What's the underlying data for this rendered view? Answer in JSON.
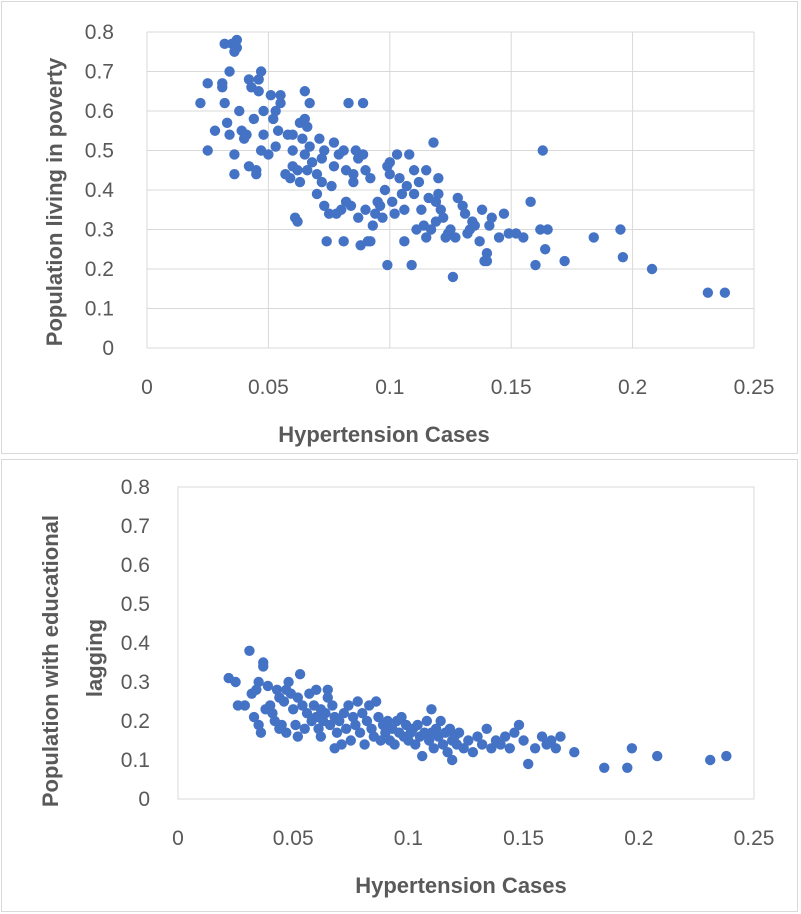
{
  "chart_data": [
    {
      "type": "scatter",
      "title": "",
      "xlabel": "Hypertension Cases",
      "ylabel": "Population living in poverty",
      "xlim": [
        0,
        0.25
      ],
      "ylim": [
        0,
        0.8
      ],
      "xticks": [
        "0",
        "0.05",
        "0.1",
        "0.15",
        "0.2",
        "0.25"
      ],
      "yticks": [
        "0",
        "0.1",
        "0.2",
        "0.3",
        "0.4",
        "0.5",
        "0.6",
        "0.7",
        "0.8"
      ],
      "grid": true,
      "marker_color": "#4472c4",
      "points": [
        [
          0.022,
          0.62
        ],
        [
          0.025,
          0.67
        ],
        [
          0.025,
          0.5
        ],
        [
          0.028,
          0.55
        ],
        [
          0.031,
          0.66
        ],
        [
          0.031,
          0.67
        ],
        [
          0.032,
          0.62
        ],
        [
          0.032,
          0.77
        ],
        [
          0.033,
          0.57
        ],
        [
          0.034,
          0.54
        ],
        [
          0.034,
          0.7
        ],
        [
          0.035,
          0.77
        ],
        [
          0.036,
          0.75
        ],
        [
          0.036,
          0.44
        ],
        [
          0.036,
          0.49
        ],
        [
          0.037,
          0.78
        ],
        [
          0.037,
          0.76
        ],
        [
          0.038,
          0.6
        ],
        [
          0.039,
          0.55
        ],
        [
          0.04,
          0.53
        ],
        [
          0.041,
          0.54
        ],
        [
          0.042,
          0.46
        ],
        [
          0.042,
          0.68
        ],
        [
          0.043,
          0.66
        ],
        [
          0.044,
          0.58
        ],
        [
          0.045,
          0.45
        ],
        [
          0.045,
          0.44
        ],
        [
          0.046,
          0.65
        ],
        [
          0.046,
          0.68
        ],
        [
          0.047,
          0.7
        ],
        [
          0.047,
          0.5
        ],
        [
          0.048,
          0.54
        ],
        [
          0.048,
          0.6
        ],
        [
          0.05,
          0.49
        ],
        [
          0.051,
          0.64
        ],
        [
          0.052,
          0.58
        ],
        [
          0.053,
          0.6
        ],
        [
          0.053,
          0.51
        ],
        [
          0.054,
          0.55
        ],
        [
          0.055,
          0.62
        ],
        [
          0.055,
          0.64
        ],
        [
          0.057,
          0.44
        ],
        [
          0.058,
          0.54
        ],
        [
          0.059,
          0.43
        ],
        [
          0.06,
          0.46
        ],
        [
          0.06,
          0.5
        ],
        [
          0.06,
          0.54
        ],
        [
          0.061,
          0.33
        ],
        [
          0.062,
          0.32
        ],
        [
          0.062,
          0.45
        ],
        [
          0.063,
          0.42
        ],
        [
          0.063,
          0.57
        ],
        [
          0.064,
          0.53
        ],
        [
          0.065,
          0.65
        ],
        [
          0.065,
          0.58
        ],
        [
          0.065,
          0.49
        ],
        [
          0.066,
          0.45
        ],
        [
          0.066,
          0.56
        ],
        [
          0.067,
          0.62
        ],
        [
          0.067,
          0.51
        ],
        [
          0.068,
          0.47
        ],
        [
          0.07,
          0.44
        ],
        [
          0.07,
          0.39
        ],
        [
          0.071,
          0.53
        ],
        [
          0.072,
          0.42
        ],
        [
          0.072,
          0.48
        ],
        [
          0.073,
          0.36
        ],
        [
          0.073,
          0.5
        ],
        [
          0.074,
          0.27
        ],
        [
          0.075,
          0.34
        ],
        [
          0.076,
          0.41
        ],
        [
          0.077,
          0.46
        ],
        [
          0.077,
          0.52
        ],
        [
          0.078,
          0.34
        ],
        [
          0.079,
          0.49
        ],
        [
          0.08,
          0.35
        ],
        [
          0.081,
          0.5
        ],
        [
          0.081,
          0.27
        ],
        [
          0.082,
          0.37
        ],
        [
          0.082,
          0.45
        ],
        [
          0.083,
          0.62
        ],
        [
          0.084,
          0.36
        ],
        [
          0.085,
          0.44
        ],
        [
          0.085,
          0.42
        ],
        [
          0.086,
          0.5
        ],
        [
          0.087,
          0.33
        ],
        [
          0.087,
          0.48
        ],
        [
          0.088,
          0.26
        ],
        [
          0.089,
          0.49
        ],
        [
          0.089,
          0.62
        ],
        [
          0.09,
          0.45
        ],
        [
          0.09,
          0.35
        ],
        [
          0.091,
          0.27
        ],
        [
          0.092,
          0.43
        ],
        [
          0.092,
          0.27
        ],
        [
          0.093,
          0.31
        ],
        [
          0.094,
          0.34
        ],
        [
          0.095,
          0.37
        ],
        [
          0.096,
          0.36
        ],
        [
          0.097,
          0.33
        ],
        [
          0.098,
          0.4
        ],
        [
          0.099,
          0.46
        ],
        [
          0.099,
          0.21
        ],
        [
          0.1,
          0.47
        ],
        [
          0.1,
          0.44
        ],
        [
          0.101,
          0.37
        ],
        [
          0.102,
          0.34
        ],
        [
          0.103,
          0.49
        ],
        [
          0.104,
          0.43
        ],
        [
          0.105,
          0.39
        ],
        [
          0.106,
          0.35
        ],
        [
          0.106,
          0.27
        ],
        [
          0.107,
          0.41
        ],
        [
          0.108,
          0.49
        ],
        [
          0.109,
          0.21
        ],
        [
          0.11,
          0.45
        ],
        [
          0.11,
          0.39
        ],
        [
          0.111,
          0.3
        ],
        [
          0.112,
          0.42
        ],
        [
          0.113,
          0.35
        ],
        [
          0.114,
          0.31
        ],
        [
          0.115,
          0.45
        ],
        [
          0.115,
          0.28
        ],
        [
          0.116,
          0.38
        ],
        [
          0.117,
          0.3
        ],
        [
          0.118,
          0.52
        ],
        [
          0.119,
          0.37
        ],
        [
          0.119,
          0.32
        ],
        [
          0.12,
          0.39
        ],
        [
          0.12,
          0.43
        ],
        [
          0.121,
          0.35
        ],
        [
          0.122,
          0.33
        ],
        [
          0.123,
          0.28
        ],
        [
          0.124,
          0.29
        ],
        [
          0.125,
          0.3
        ],
        [
          0.126,
          0.18
        ],
        [
          0.127,
          0.28
        ],
        [
          0.128,
          0.38
        ],
        [
          0.13,
          0.36
        ],
        [
          0.131,
          0.34
        ],
        [
          0.132,
          0.29
        ],
        [
          0.133,
          0.3
        ],
        [
          0.134,
          0.32
        ],
        [
          0.135,
          0.31
        ],
        [
          0.137,
          0.27
        ],
        [
          0.138,
          0.35
        ],
        [
          0.139,
          0.22
        ],
        [
          0.14,
          0.24
        ],
        [
          0.14,
          0.22
        ],
        [
          0.141,
          0.31
        ],
        [
          0.142,
          0.33
        ],
        [
          0.145,
          0.28
        ],
        [
          0.147,
          0.34
        ],
        [
          0.149,
          0.29
        ],
        [
          0.152,
          0.29
        ],
        [
          0.155,
          0.28
        ],
        [
          0.158,
          0.37
        ],
        [
          0.16,
          0.21
        ],
        [
          0.162,
          0.3
        ],
        [
          0.163,
          0.5
        ],
        [
          0.164,
          0.25
        ],
        [
          0.165,
          0.3
        ],
        [
          0.172,
          0.22
        ],
        [
          0.184,
          0.28
        ],
        [
          0.195,
          0.3
        ],
        [
          0.196,
          0.23
        ],
        [
          0.208,
          0.2
        ],
        [
          0.231,
          0.14
        ],
        [
          0.238,
          0.14
        ]
      ]
    },
    {
      "type": "scatter",
      "title": "",
      "xlabel": "Hypertension Cases",
      "ylabel": "Population with educational lagging",
      "ylabel_lines": [
        "Population with educational",
        "lagging"
      ],
      "xlim": [
        0,
        0.25
      ],
      "ylim": [
        0,
        0.8
      ],
      "xticks": [
        "0",
        "0.05",
        "0.1",
        "0.15",
        "0.2",
        "0.25"
      ],
      "yticks": [
        "0",
        "0.1",
        "0.2",
        "0.3",
        "0.4",
        "0.5",
        "0.6",
        "0.7",
        "0.8"
      ],
      "grid": false,
      "marker_color": "#4472c4",
      "points": [
        [
          0.022,
          0.31
        ],
        [
          0.025,
          0.3
        ],
        [
          0.026,
          0.24
        ],
        [
          0.029,
          0.24
        ],
        [
          0.031,
          0.38
        ],
        [
          0.032,
          0.27
        ],
        [
          0.033,
          0.21
        ],
        [
          0.034,
          0.28
        ],
        [
          0.035,
          0.3
        ],
        [
          0.035,
          0.19
        ],
        [
          0.036,
          0.17
        ],
        [
          0.037,
          0.34
        ],
        [
          0.037,
          0.35
        ],
        [
          0.038,
          0.23
        ],
        [
          0.039,
          0.29
        ],
        [
          0.04,
          0.24
        ],
        [
          0.041,
          0.22
        ],
        [
          0.042,
          0.2
        ],
        [
          0.043,
          0.28
        ],
        [
          0.044,
          0.18
        ],
        [
          0.044,
          0.26
        ],
        [
          0.045,
          0.19
        ],
        [
          0.046,
          0.25
        ],
        [
          0.047,
          0.17
        ],
        [
          0.047,
          0.28
        ],
        [
          0.048,
          0.3
        ],
        [
          0.049,
          0.27
        ],
        [
          0.05,
          0.23
        ],
        [
          0.051,
          0.19
        ],
        [
          0.052,
          0.16
        ],
        [
          0.052,
          0.26
        ],
        [
          0.053,
          0.32
        ],
        [
          0.054,
          0.24
        ],
        [
          0.055,
          0.18
        ],
        [
          0.056,
          0.22
        ],
        [
          0.057,
          0.27
        ],
        [
          0.058,
          0.2
        ],
        [
          0.059,
          0.24
        ],
        [
          0.06,
          0.21
        ],
        [
          0.06,
          0.28
        ],
        [
          0.061,
          0.18
        ],
        [
          0.062,
          0.23
        ],
        [
          0.062,
          0.16
        ],
        [
          0.063,
          0.2
        ],
        [
          0.064,
          0.22
        ],
        [
          0.065,
          0.26
        ],
        [
          0.065,
          0.28
        ],
        [
          0.066,
          0.19
        ],
        [
          0.067,
          0.24
        ],
        [
          0.068,
          0.13
        ],
        [
          0.068,
          0.21
        ],
        [
          0.069,
          0.17
        ],
        [
          0.07,
          0.2
        ],
        [
          0.071,
          0.14
        ],
        [
          0.072,
          0.22
        ],
        [
          0.073,
          0.18
        ],
        [
          0.074,
          0.24
        ],
        [
          0.075,
          0.15
        ],
        [
          0.076,
          0.21
        ],
        [
          0.077,
          0.19
        ],
        [
          0.078,
          0.25
        ],
        [
          0.079,
          0.17
        ],
        [
          0.08,
          0.22
        ],
        [
          0.081,
          0.14
        ],
        [
          0.082,
          0.2
        ],
        [
          0.083,
          0.24
        ],
        [
          0.084,
          0.18
        ],
        [
          0.085,
          0.16
        ],
        [
          0.086,
          0.25
        ],
        [
          0.087,
          0.21
        ],
        [
          0.088,
          0.15
        ],
        [
          0.089,
          0.19
        ],
        [
          0.09,
          0.17
        ],
        [
          0.091,
          0.2
        ],
        [
          0.092,
          0.15
        ],
        [
          0.093,
          0.18
        ],
        [
          0.094,
          0.14
        ],
        [
          0.095,
          0.2
        ],
        [
          0.096,
          0.17
        ],
        [
          0.097,
          0.21
        ],
        [
          0.098,
          0.16
        ],
        [
          0.099,
          0.19
        ],
        [
          0.1,
          0.15
        ],
        [
          0.101,
          0.17
        ],
        [
          0.102,
          0.18
        ],
        [
          0.103,
          0.14
        ],
        [
          0.104,
          0.19
        ],
        [
          0.105,
          0.16
        ],
        [
          0.106,
          0.11
        ],
        [
          0.107,
          0.17
        ],
        [
          0.108,
          0.2
        ],
        [
          0.109,
          0.15
        ],
        [
          0.11,
          0.23
        ],
        [
          0.11,
          0.17
        ],
        [
          0.111,
          0.13
        ],
        [
          0.112,
          0.18
        ],
        [
          0.113,
          0.16
        ],
        [
          0.114,
          0.2
        ],
        [
          0.115,
          0.14
        ],
        [
          0.116,
          0.17
        ],
        [
          0.117,
          0.12
        ],
        [
          0.118,
          0.18
        ],
        [
          0.119,
          0.15
        ],
        [
          0.119,
          0.1
        ],
        [
          0.12,
          0.16
        ],
        [
          0.121,
          0.14
        ],
        [
          0.122,
          0.17
        ],
        [
          0.124,
          0.13
        ],
        [
          0.126,
          0.15
        ],
        [
          0.128,
          0.12
        ],
        [
          0.13,
          0.16
        ],
        [
          0.132,
          0.14
        ],
        [
          0.134,
          0.18
        ],
        [
          0.136,
          0.13
        ],
        [
          0.138,
          0.15
        ],
        [
          0.14,
          0.14
        ],
        [
          0.142,
          0.16
        ],
        [
          0.144,
          0.13
        ],
        [
          0.146,
          0.17
        ],
        [
          0.148,
          0.19
        ],
        [
          0.15,
          0.15
        ],
        [
          0.152,
          0.09
        ],
        [
          0.155,
          0.13
        ],
        [
          0.158,
          0.16
        ],
        [
          0.16,
          0.14
        ],
        [
          0.162,
          0.15
        ],
        [
          0.164,
          0.13
        ],
        [
          0.166,
          0.16
        ],
        [
          0.172,
          0.12
        ],
        [
          0.185,
          0.08
        ],
        [
          0.195,
          0.08
        ],
        [
          0.197,
          0.13
        ],
        [
          0.208,
          0.11
        ],
        [
          0.231,
          0.1
        ],
        [
          0.238,
          0.11
        ]
      ]
    }
  ]
}
